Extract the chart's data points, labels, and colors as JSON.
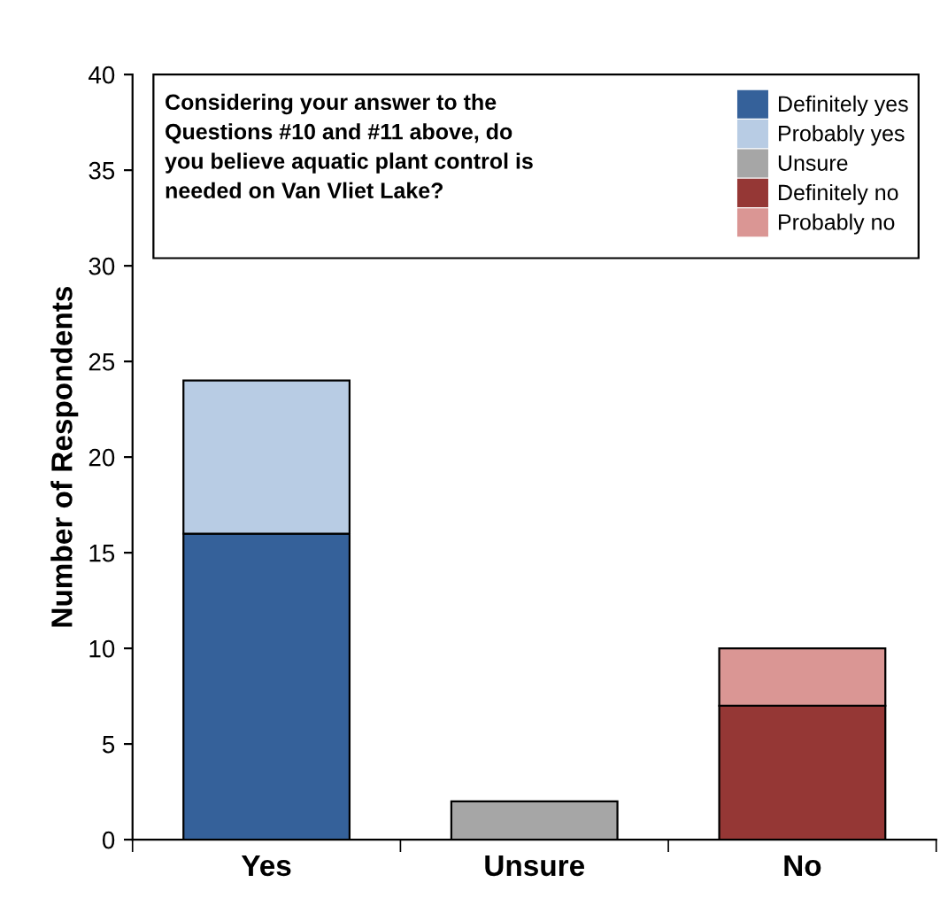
{
  "chart_data": {
    "type": "bar",
    "stacked": true,
    "title": "Considering your answer to the\nQuestions #10 and #11 above, do\nyou believe aquatic plant control is\nneeded on Van Vliet Lake?",
    "ylabel": "Number of Respondents",
    "categories": [
      "Yes",
      "Unsure",
      "No"
    ],
    "series": [
      {
        "name": "Definitely yes",
        "color": "#35619a",
        "values": [
          16,
          null,
          null
        ]
      },
      {
        "name": "Probably yes",
        "color": "#b8cce4",
        "values": [
          8,
          null,
          null
        ]
      },
      {
        "name": "Unsure",
        "color": "#a6a6a6",
        "values": [
          null,
          2,
          null
        ]
      },
      {
        "name": "Definitely no",
        "color": "#953735",
        "values": [
          null,
          null,
          7
        ]
      },
      {
        "name": "Probably no",
        "color": "#da9694",
        "values": [
          null,
          null,
          3
        ]
      }
    ],
    "ylim": [
      0,
      40
    ],
    "yticks": [
      0,
      5,
      10,
      15,
      20,
      25,
      30,
      35,
      40
    ],
    "grid": false,
    "legend": "top right"
  }
}
